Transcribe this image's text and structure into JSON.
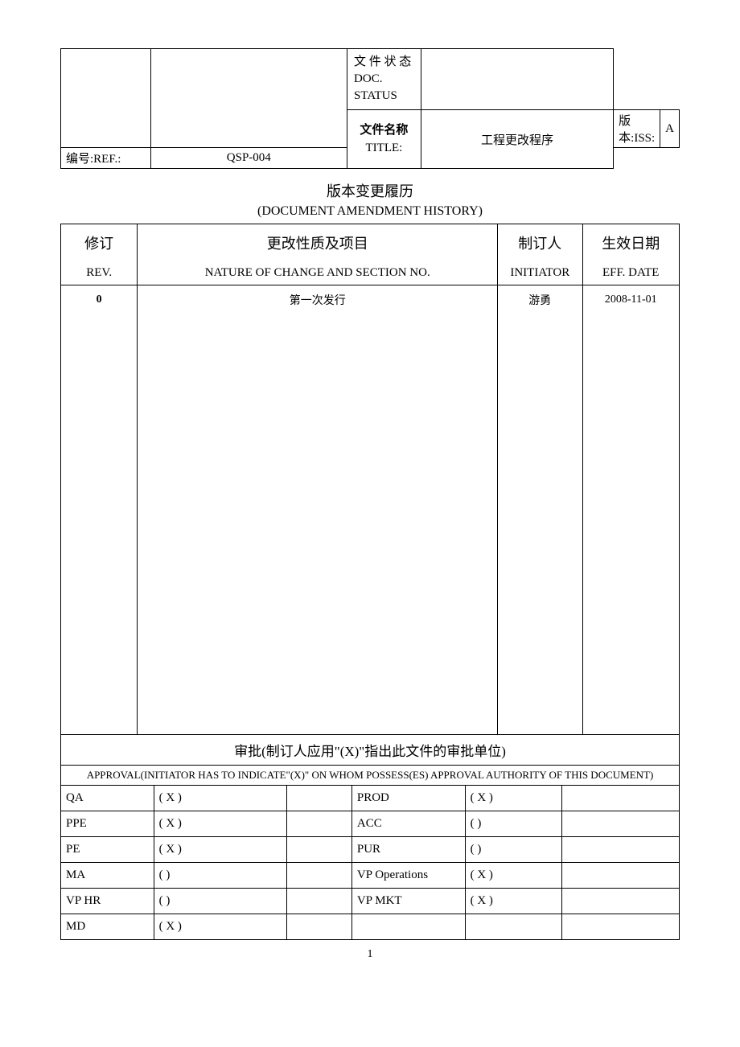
{
  "header": {
    "status_label_cn": "文 件 状 态",
    "status_label_en1": "DOC.",
    "status_label_en2": "STATUS",
    "status_value": "",
    "name_label_cn": "文件名称",
    "name_label_en": "TITLE:",
    "title": "工程更改程序",
    "iss_label": "版本:ISS:",
    "iss_value": "A",
    "ref_label": "编号:REF.:",
    "ref_value": "QSP-004"
  },
  "section": {
    "title_cn": "版本变更履历",
    "title_en": "(DOCUMENT AMENDMENT HISTORY)"
  },
  "hist": {
    "h1": {
      "rev": "修订",
      "nature": "更改性质及项目",
      "init": "制订人",
      "date": "生效日期"
    },
    "h2": {
      "rev": "REV.",
      "nature": "NATURE OF CHANGE AND SECTION NO.",
      "init": "INITIATOR",
      "date": "EFF. DATE"
    },
    "rows": [
      {
        "rev": "0",
        "nature": "第一次发行",
        "init": "游勇",
        "date": "2008-11-01"
      }
    ]
  },
  "approval": {
    "instr_cn": "审批(制订人应用\"(X)\"指出此文件的审批单位)",
    "instr_en": "APPROVAL(INITIATOR HAS TO INDICATE\"(X)\" ON WHOM POSSESS(ES) APPROVAL AUTHORITY OF THIS DOCUMENT)",
    "rows": [
      {
        "d1": "QA",
        "c1": "(   X   )",
        "d2": "PROD",
        "c2": "(   X   )"
      },
      {
        "d1": "PPE",
        "c1": "(   X   )",
        "d2": "ACC",
        "c2": "(          )"
      },
      {
        "d1": "PE",
        "c1": "(   X   )",
        "d2": "PUR",
        "c2": "(          )"
      },
      {
        "d1": "MA",
        "c1": "(          )",
        "d2": "VP Operations",
        "c2": "(   X   )"
      },
      {
        "d1": "VP   HR",
        "c1": "(          )",
        "d2": "VP   MKT",
        "c2": "(   X   )"
      },
      {
        "d1": "MD",
        "c1": "(   X   )",
        "d2": "",
        "c2": ""
      }
    ]
  },
  "page_number": "1"
}
